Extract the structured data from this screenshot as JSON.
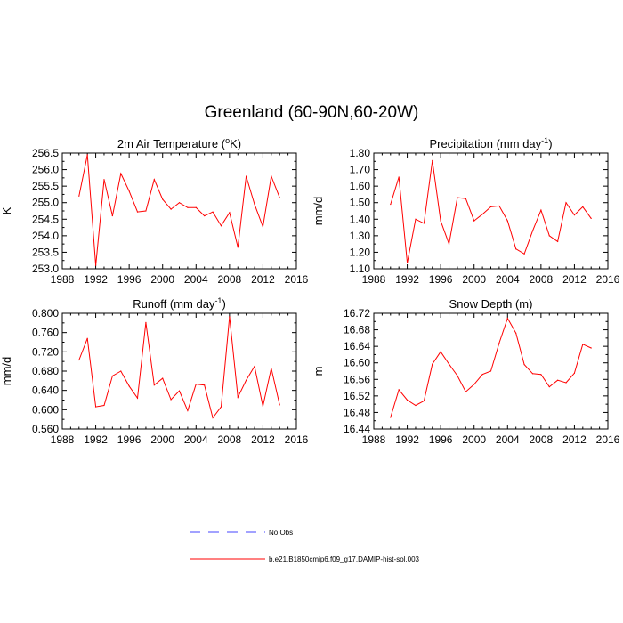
{
  "figure": {
    "title": "Greenland (60-90N,60-20W)",
    "legend": [
      {
        "label": "No Obs",
        "color": "#4444ff",
        "style": "dashed"
      },
      {
        "label": "b.e21.B1850cmip6.f09_g17.DAMIP-hist-sol.003",
        "color": "#ff0000",
        "style": "solid"
      }
    ]
  },
  "chart_data": [
    {
      "type": "line",
      "title": "2m Air Temperature (ºK)",
      "title_main": "2m Air Temperature (",
      "title_sup": "o",
      "title_tail": "K)",
      "ylabel": "K",
      "xlim": [
        1988,
        2016
      ],
      "ylim": [
        253.0,
        256.5
      ],
      "xticks": [
        1988,
        1992,
        1996,
        2000,
        2004,
        2008,
        2012,
        2016
      ],
      "yticks": [
        "253.0",
        "253.5",
        "254.0",
        "254.5",
        "255.0",
        "255.5",
        "256.0",
        "256.5"
      ],
      "x": [
        1990,
        1991,
        1992,
        1993,
        1994,
        1995,
        1996,
        1997,
        1998,
        1999,
        2000,
        2001,
        2002,
        2003,
        2004,
        2005,
        2006,
        2007,
        2008,
        2009,
        2010,
        2011,
        2012,
        2013,
        2014
      ],
      "series": [
        {
          "color": "#ff0000",
          "values": [
            255.2,
            256.45,
            253.1,
            255.7,
            254.6,
            255.88,
            255.35,
            254.72,
            254.75,
            255.7,
            255.1,
            254.8,
            255.0,
            254.85,
            254.85,
            254.6,
            254.72,
            254.3,
            254.7,
            253.65,
            255.8,
            254.95,
            254.27,
            255.8,
            255.15
          ]
        }
      ]
    },
    {
      "type": "line",
      "title": "Precipitation (mm day-1)",
      "title_main": "Precipitation (mm day",
      "title_sup": "-1",
      "title_tail": ")",
      "ylabel": "mm/d",
      "xlim": [
        1988,
        2016
      ],
      "ylim": [
        1.1,
        1.8
      ],
      "xticks": [
        1988,
        1992,
        1996,
        2000,
        2004,
        2008,
        2012,
        2016
      ],
      "yticks": [
        "1.10",
        "1.20",
        "1.30",
        "1.40",
        "1.50",
        "1.60",
        "1.70",
        "1.80"
      ],
      "x": [
        1990,
        1991,
        1992,
        1993,
        1994,
        1995,
        1996,
        1997,
        1998,
        1999,
        2000,
        2001,
        2002,
        2003,
        2004,
        2005,
        2006,
        2007,
        2008,
        2009,
        2010,
        2011,
        2012,
        2013,
        2014
      ],
      "series": [
        {
          "color": "#ff0000",
          "values": [
            1.49,
            1.655,
            1.135,
            1.4,
            1.375,
            1.755,
            1.39,
            1.25,
            1.53,
            1.525,
            1.39,
            1.43,
            1.475,
            1.48,
            1.39,
            1.22,
            1.19,
            1.33,
            1.455,
            1.3,
            1.265,
            1.5,
            1.425,
            1.475,
            1.405
          ]
        }
      ]
    },
    {
      "type": "line",
      "title": "Runoff (mm day-1)",
      "title_main": "Runoff (mm day",
      "title_sup": "-1",
      "title_tail": ")",
      "ylabel": "mm/d",
      "xlim": [
        1988,
        2016
      ],
      "ylim": [
        0.56,
        0.8
      ],
      "xticks": [
        1988,
        1992,
        1996,
        2000,
        2004,
        2008,
        2012,
        2016
      ],
      "yticks": [
        "0.560",
        "0.600",
        "0.640",
        "0.680",
        "0.720",
        "0.760",
        "0.800"
      ],
      "x": [
        1990,
        1991,
        1992,
        1993,
        1994,
        1995,
        1996,
        1997,
        1998,
        1999,
        2000,
        2001,
        2002,
        2003,
        2004,
        2005,
        2006,
        2007,
        2008,
        2009,
        2010,
        2011,
        2012,
        2013,
        2014
      ],
      "series": [
        {
          "color": "#ff0000",
          "values": [
            0.703,
            0.748,
            0.606,
            0.609,
            0.67,
            0.68,
            0.649,
            0.624,
            0.781,
            0.651,
            0.665,
            0.621,
            0.639,
            0.598,
            0.653,
            0.651,
            0.583,
            0.606,
            0.793,
            0.626,
            0.661,
            0.69,
            0.607,
            0.686,
            0.61
          ]
        }
      ]
    },
    {
      "type": "line",
      "title": "Snow Depth (m)",
      "title_main": "Snow Depth (m)",
      "title_sup": "",
      "title_tail": "",
      "ylabel": "m",
      "xlim": [
        1988,
        2016
      ],
      "ylim": [
        16.44,
        16.72
      ],
      "xticks": [
        1988,
        1992,
        1996,
        2000,
        2004,
        2008,
        2012,
        2016
      ],
      "yticks": [
        "16.44",
        "16.48",
        "16.52",
        "16.56",
        "16.60",
        "16.64",
        "16.68",
        "16.72"
      ],
      "x": [
        1990,
        1991,
        1992,
        1993,
        1994,
        1995,
        1996,
        1997,
        1998,
        1999,
        2000,
        2001,
        2002,
        2003,
        2004,
        2005,
        2006,
        2007,
        2008,
        2009,
        2010,
        2011,
        2012,
        2013,
        2014
      ],
      "series": [
        {
          "color": "#ff0000",
          "values": [
            16.468,
            16.535,
            16.51,
            16.497,
            16.508,
            16.597,
            16.627,
            16.597,
            16.569,
            16.53,
            16.548,
            16.572,
            16.58,
            16.648,
            16.708,
            16.672,
            16.596,
            16.574,
            16.572,
            16.542,
            16.558,
            16.552,
            16.575,
            16.645,
            16.636
          ]
        }
      ]
    }
  ]
}
